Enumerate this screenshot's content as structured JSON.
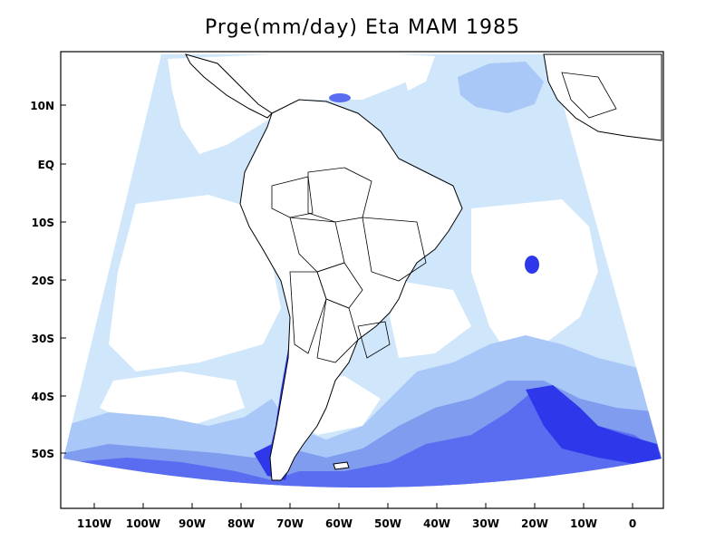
{
  "title": "Prge(mm/day) Eta MAM 1985",
  "colors": {
    "background": "#ffffff",
    "level1": "#cfe6fb",
    "level2": "#a9c8f7",
    "level3": "#7f9cef",
    "level4": "#5a6df0",
    "level5": "#2f37ea",
    "coastline": "#000000"
  },
  "axes": {
    "y_ticks": [
      "10N",
      "EQ",
      "10S",
      "20S",
      "30S",
      "40S",
      "50S"
    ],
    "x_ticks": [
      "110W",
      "100W",
      "90W",
      "80W",
      "70W",
      "60W",
      "50W",
      "40W",
      "30W",
      "20W",
      "10W",
      "0"
    ]
  }
}
